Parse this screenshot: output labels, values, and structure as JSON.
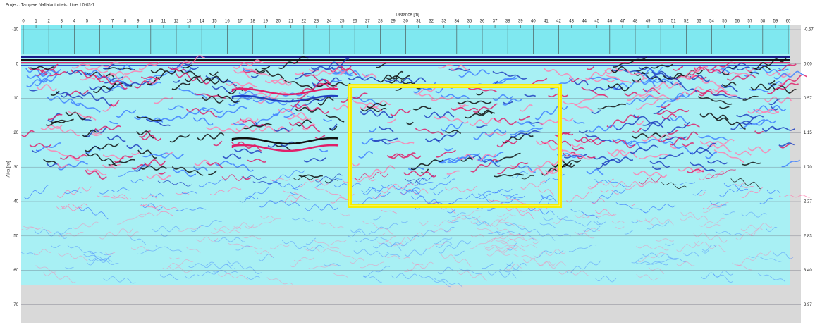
{
  "header": {
    "title": "Project: Tampere Naftalantori etc. Line: L0-03-1"
  },
  "top_axis": {
    "label": "Distance [m]",
    "ticks": [
      "0",
      "1",
      "2",
      "3",
      "4",
      "5",
      "6",
      "7",
      "8",
      "9",
      "10",
      "11",
      "12",
      "13",
      "14",
      "15",
      "16",
      "17",
      "18",
      "19",
      "20",
      "21",
      "22",
      "23",
      "24",
      "25",
      "26",
      "27",
      "28",
      "29",
      "30",
      "31",
      "32",
      "33",
      "34",
      "35",
      "36",
      "37",
      "38",
      "39",
      "40",
      "41",
      "42",
      "43",
      "44",
      "45",
      "46",
      "47",
      "48",
      "49",
      "50",
      "51",
      "52",
      "53",
      "54",
      "55",
      "56",
      "57",
      "58",
      "59",
      "60"
    ]
  },
  "left_axis": {
    "label": "Aika [ns]",
    "ticks": [
      "-10",
      "0",
      "10",
      "20",
      "30",
      "40",
      "50",
      "60",
      "70"
    ]
  },
  "right_axis": {
    "ticks": [
      "-0.57",
      "0.00",
      "0.57",
      "1.15",
      "1.70",
      "2.27",
      "2.83",
      "3.40",
      "3.97"
    ]
  }
}
